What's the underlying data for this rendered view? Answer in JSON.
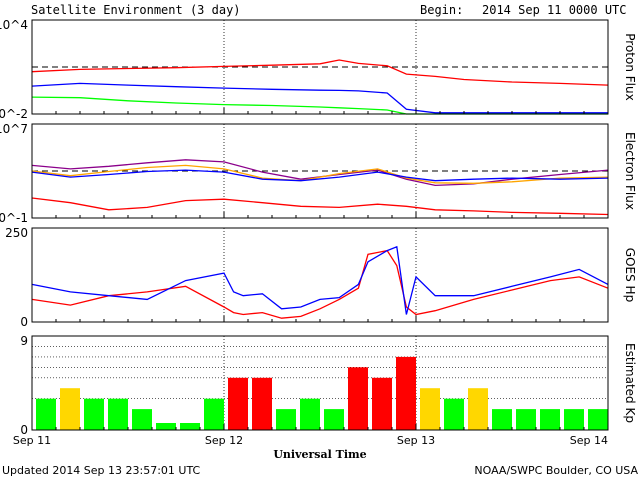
{
  "header": {
    "title": "Satellite Environment (3 day)",
    "begin_label": "Begin:",
    "begin_value": "2014 Sep 11 0000 UTC"
  },
  "footer": {
    "updated": "Updated 2014 Sep 13 23:57:01 UTC",
    "credit": "NOAA/SWPC Boulder, CO USA"
  },
  "x_axis": {
    "label": "Universal Time",
    "ticks": [
      "Sep 11",
      "Sep 12",
      "Sep 13",
      "Sep 14"
    ]
  },
  "colors": {
    "red": "#ff0000",
    "blue": "#0000ff",
    "green": "#00ff00",
    "orange": "#ffa500",
    "purple": "#8b008b",
    "kp_green": "#00ff00",
    "kp_yellow": "#ffd700",
    "kp_red": "#ff0000"
  },
  "chart_data": [
    {
      "type": "line",
      "ylabel": "Proton Flux",
      "y_scale": "log",
      "y_tick_labels": [
        "10^4",
        "10^-2"
      ],
      "threshold": 10,
      "x": [
        0,
        0.25,
        0.5,
        0.75,
        1.0,
        1.25,
        1.5,
        1.6,
        1.7,
        1.85,
        1.95,
        2.1,
        2.25,
        2.5,
        2.75,
        3.0
      ],
      "series": [
        {
          "values": [
            5,
            7,
            8,
            9,
            11,
            13,
            16,
            28,
            17,
            12,
            3.5,
            2.5,
            1.6,
            1.1,
            0.9,
            0.7
          ]
        },
        {
          "values": [
            0.6,
            0.9,
            0.7,
            0.55,
            0.45,
            0.38,
            0.33,
            0.32,
            0.3,
            0.22,
            0.02,
            0.012,
            0.012,
            0.012,
            0.012,
            0.012
          ]
        },
        {
          "values": [
            0.12,
            0.11,
            0.07,
            0.05,
            0.04,
            0.035,
            0.028,
            0.025,
            0.022,
            0.018,
            0.01,
            0.01,
            0.01,
            0.01,
            0.01,
            0.01
          ]
        }
      ]
    },
    {
      "type": "line",
      "ylabel": "Electron Flux",
      "y_scale": "log",
      "y_tick_labels": [
        "10^7",
        "10^-1"
      ],
      "threshold": 1000,
      "x": [
        0,
        0.2,
        0.4,
        0.6,
        0.8,
        1.0,
        1.2,
        1.4,
        1.6,
        1.8,
        1.95,
        2.1,
        2.3,
        2.5,
        2.75,
        3.0
      ],
      "series": [
        {
          "values": [
            3000,
            1500,
            2500,
            5000,
            9000,
            6000,
            800,
            200,
            500,
            1200,
            200,
            60,
            80,
            200,
            500,
            1200
          ]
        },
        {
          "values": [
            1000,
            400,
            900,
            2000,
            3000,
            1500,
            250,
            150,
            600,
            1500,
            250,
            100,
            90,
            120,
            250,
            300
          ]
        },
        {
          "values": [
            800,
            300,
            500,
            900,
            1200,
            800,
            200,
            150,
            300,
            800,
            300,
            150,
            200,
            250,
            200,
            250
          ]
        },
        {
          "values": [
            5,
            2,
            0.5,
            0.8,
            3,
            4,
            2,
            1,
            0.8,
            1.5,
            1,
            0.5,
            0.4,
            0.3,
            0.25,
            0.2
          ]
        }
      ]
    },
    {
      "type": "line",
      "ylabel": "GOES Hp",
      "y_tick_labels": [
        "250",
        "0"
      ],
      "ylim": [
        0,
        250
      ],
      "x": [
        0,
        0.2,
        0.4,
        0.6,
        0.8,
        1.0,
        1.05,
        1.1,
        1.2,
        1.3,
        1.4,
        1.5,
        1.6,
        1.7,
        1.75,
        1.85,
        1.9,
        1.95,
        2.0,
        2.1,
        2.3,
        2.5,
        2.7,
        2.85,
        3.0
      ],
      "series": [
        {
          "values": [
            60,
            45,
            70,
            80,
            95,
            40,
            25,
            20,
            25,
            10,
            15,
            35,
            60,
            90,
            180,
            190,
            150,
            40,
            20,
            30,
            60,
            85,
            110,
            120,
            90
          ]
        },
        {
          "values": [
            100,
            80,
            70,
            60,
            110,
            130,
            80,
            70,
            75,
            35,
            40,
            60,
            65,
            100,
            160,
            190,
            200,
            20,
            120,
            70,
            70,
            95,
            120,
            140,
            100
          ]
        }
      ]
    },
    {
      "type": "bar",
      "ylabel": "Estimated Kp",
      "y_tick_labels": [
        "9",
        "0"
      ],
      "ylim": [
        0,
        9
      ],
      "values": [
        3,
        4,
        3,
        3,
        2,
        0.67,
        0.67,
        3,
        5,
        5,
        2,
        3,
        2,
        6,
        5,
        7,
        4,
        3,
        4,
        2,
        2,
        2,
        2,
        2
      ]
    }
  ]
}
